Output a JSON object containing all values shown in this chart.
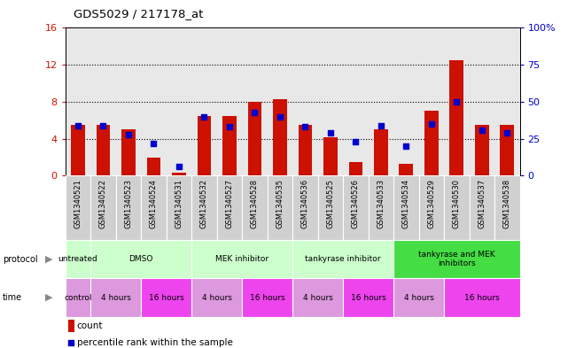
{
  "title": "GDS5029 / 217178_at",
  "samples": [
    "GSM1340521",
    "GSM1340522",
    "GSM1340523",
    "GSM1340524",
    "GSM1340531",
    "GSM1340532",
    "GSM1340527",
    "GSM1340528",
    "GSM1340535",
    "GSM1340536",
    "GSM1340525",
    "GSM1340526",
    "GSM1340533",
    "GSM1340534",
    "GSM1340529",
    "GSM1340530",
    "GSM1340537",
    "GSM1340538"
  ],
  "counts": [
    5.5,
    5.5,
    5.0,
    2.0,
    0.3,
    6.5,
    6.5,
    8.0,
    8.3,
    5.5,
    4.2,
    1.5,
    5.0,
    1.3,
    7.0,
    12.5,
    5.5,
    5.5
  ],
  "percentiles": [
    34,
    34,
    28,
    22,
    6,
    40,
    33,
    43,
    40,
    33,
    29,
    23,
    34,
    20,
    35,
    50,
    31,
    29
  ],
  "left_ylim": [
    0,
    16
  ],
  "right_ylim": [
    0,
    100
  ],
  "left_yticks": [
    0,
    4,
    8,
    12,
    16
  ],
  "right_yticks": [
    0,
    25,
    50,
    75,
    100
  ],
  "right_yticklabels": [
    "0",
    "25",
    "50",
    "75",
    "100%"
  ],
  "bar_color": "#cc1100",
  "dot_color": "#0000cc",
  "grid_yticks": [
    4,
    8,
    12
  ],
  "xtick_bg": "#d0d0d0",
  "proto_groups": [
    {
      "start": 0,
      "end": 1,
      "label": "untreated",
      "color": "#ccffcc"
    },
    {
      "start": 1,
      "end": 5,
      "label": "DMSO",
      "color": "#ccffcc"
    },
    {
      "start": 5,
      "end": 9,
      "label": "MEK inhibitor",
      "color": "#ccffcc"
    },
    {
      "start": 9,
      "end": 13,
      "label": "tankyrase inhibitor",
      "color": "#ccffcc"
    },
    {
      "start": 13,
      "end": 18,
      "label": "tankyrase and MEK\ninhibitors",
      "color": "#44dd44"
    }
  ],
  "time_groups": [
    {
      "start": 0,
      "end": 1,
      "label": "control",
      "color": "#dd99dd"
    },
    {
      "start": 1,
      "end": 3,
      "label": "4 hours",
      "color": "#dd99dd"
    },
    {
      "start": 3,
      "end": 5,
      "label": "16 hours",
      "color": "#ee44ee"
    },
    {
      "start": 5,
      "end": 7,
      "label": "4 hours",
      "color": "#dd99dd"
    },
    {
      "start": 7,
      "end": 9,
      "label": "16 hours",
      "color": "#ee44ee"
    },
    {
      "start": 9,
      "end": 11,
      "label": "4 hours",
      "color": "#dd99dd"
    },
    {
      "start": 11,
      "end": 13,
      "label": "16 hours",
      "color": "#ee44ee"
    },
    {
      "start": 13,
      "end": 15,
      "label": "4 hours",
      "color": "#dd99dd"
    },
    {
      "start": 15,
      "end": 18,
      "label": "16 hours",
      "color": "#ee44ee"
    }
  ],
  "legend_count_label": "count",
  "legend_pct_label": "percentile rank within the sample"
}
